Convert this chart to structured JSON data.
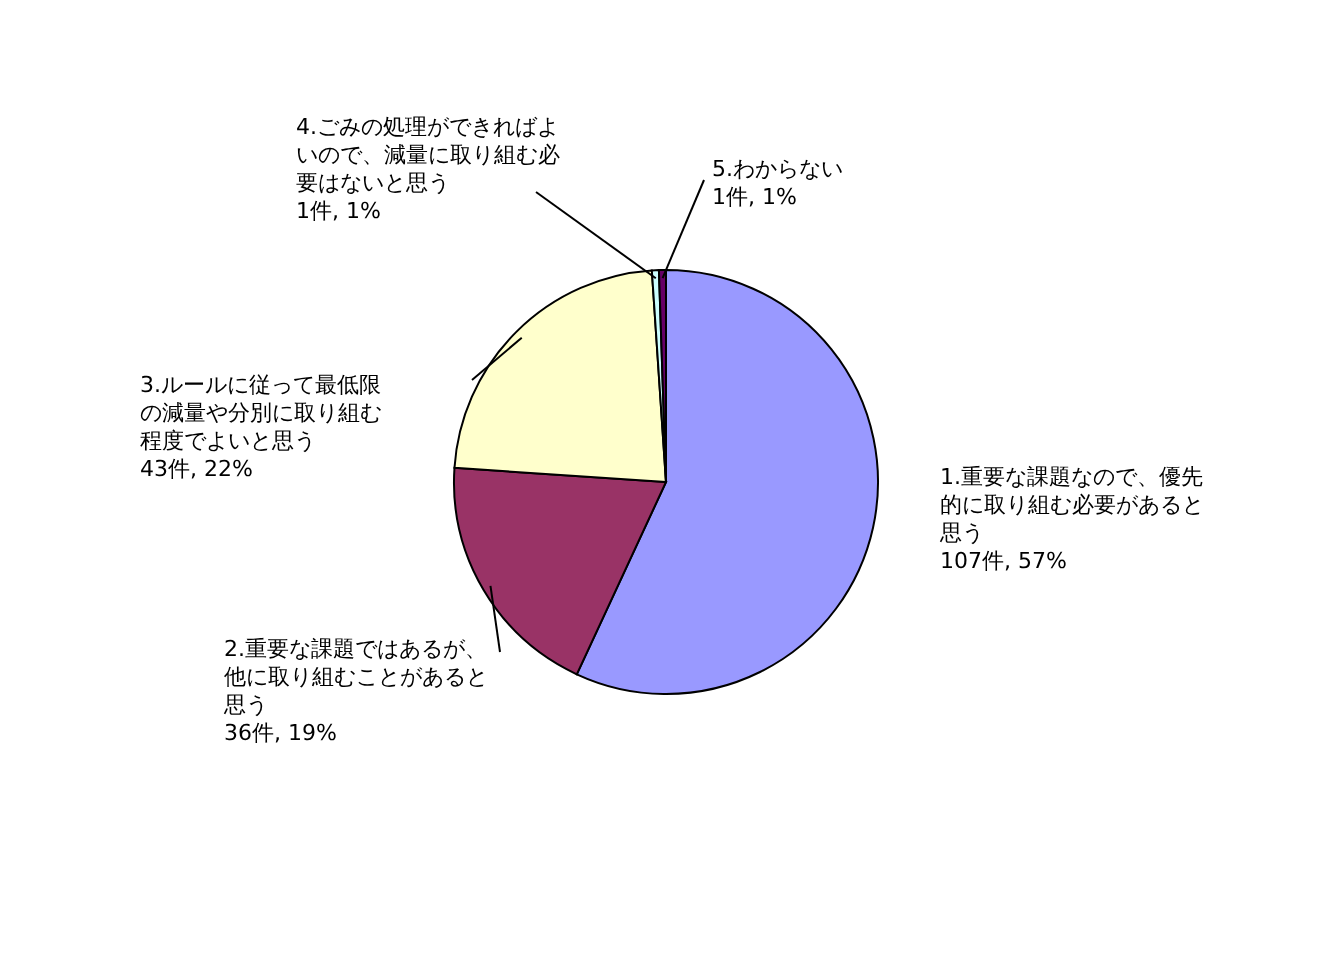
{
  "chart_data": {
    "type": "pie",
    "categories": [
      "1.重要な課題なので、優先的に取り組む必要があると思う",
      "2.重要な課題ではあるが、他に取り組むことがあると思う",
      "3.ルールに従って最低限の減量や分別に取り組む程度でよいと思う",
      "4.ごみの処理ができればよいので、減量に取り組む必要はないと思う",
      "5.わからない"
    ],
    "values": [
      107,
      36,
      43,
      1,
      1
    ],
    "value_labels": [
      "107件, 57%",
      "36件, 19%",
      "43件, 22%",
      "1件, 1%",
      "1件, 1%"
    ],
    "colors": [
      "#9999ff",
      "#993366",
      "#ffffcc",
      "#ccffff",
      "#660066"
    ],
    "legend": false
  }
}
